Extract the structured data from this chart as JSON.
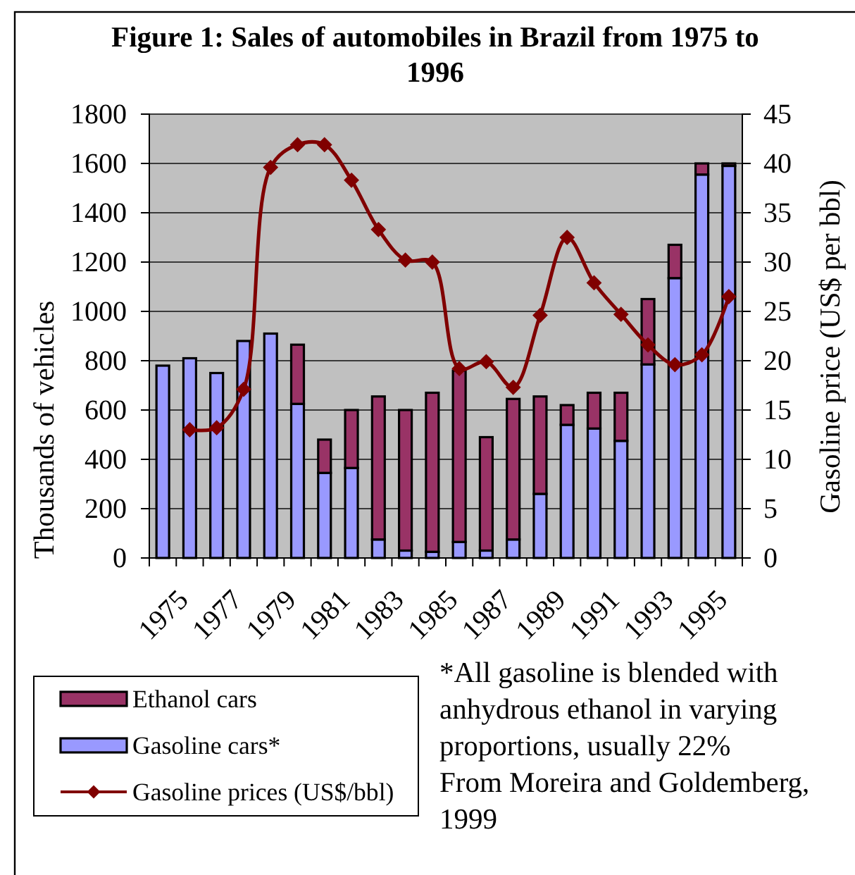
{
  "chart_data": {
    "type": "bar",
    "stacked": true,
    "title": "Figure 1: Sales of automobiles in Brazil from 1975 to 1996",
    "ylabel": "Thousands of vehicles",
    "y2label": "Gasoline price (US$ per bbl)",
    "categories": [
      "1975",
      null,
      "1977",
      null,
      "1979",
      null,
      "1981",
      null,
      "1983",
      null,
      "1985",
      null,
      "1987",
      null,
      "1989",
      null,
      "1991",
      null,
      "1993",
      null,
      "1995",
      null
    ],
    "series": [
      {
        "name": "Gasoline cars*",
        "type": "bar",
        "color": "#9999ff",
        "values": [
          780,
          810,
          750,
          880,
          910,
          625,
          345,
          365,
          75,
          30,
          25,
          65,
          30,
          75,
          260,
          540,
          525,
          475,
          785,
          1135,
          1555,
          1590
        ]
      },
      {
        "name": "Ethanol cars",
        "type": "bar",
        "color": "#993366",
        "values": [
          null,
          null,
          null,
          null,
          null,
          240,
          135,
          235,
          580,
          570,
          645,
          695,
          460,
          570,
          395,
          80,
          145,
          195,
          265,
          135,
          45,
          10
        ]
      },
      {
        "name": "Gasoline prices (US$/bbl)",
        "type": "line",
        "axis": "y2",
        "color": "#800000",
        "values": [
          null,
          13.0,
          13.2,
          17.1,
          39.6,
          41.9,
          41.9,
          38.3,
          33.3,
          30.2,
          30.0,
          19.2,
          19.9,
          17.3,
          24.6,
          32.5,
          27.9,
          24.7,
          21.6,
          19.6,
          20.6,
          26.5
        ]
      }
    ],
    "ylim": [
      0,
      1800
    ],
    "yticks": [
      0,
      200,
      400,
      600,
      800,
      1000,
      1200,
      1400,
      1600,
      1800
    ],
    "y2lim": [
      0,
      45
    ],
    "y2ticks": [
      0,
      5,
      10,
      15,
      20,
      25,
      30,
      35,
      40,
      45
    ],
    "grid": "y",
    "legend": "bottom left",
    "marker": "diamond",
    "line_style": "solid",
    "annotations": [
      "*All gasoline is blended with anhydrous ethanol in varying proportions, usually 22%",
      "From Moreira and Goldemberg, 1999"
    ]
  }
}
